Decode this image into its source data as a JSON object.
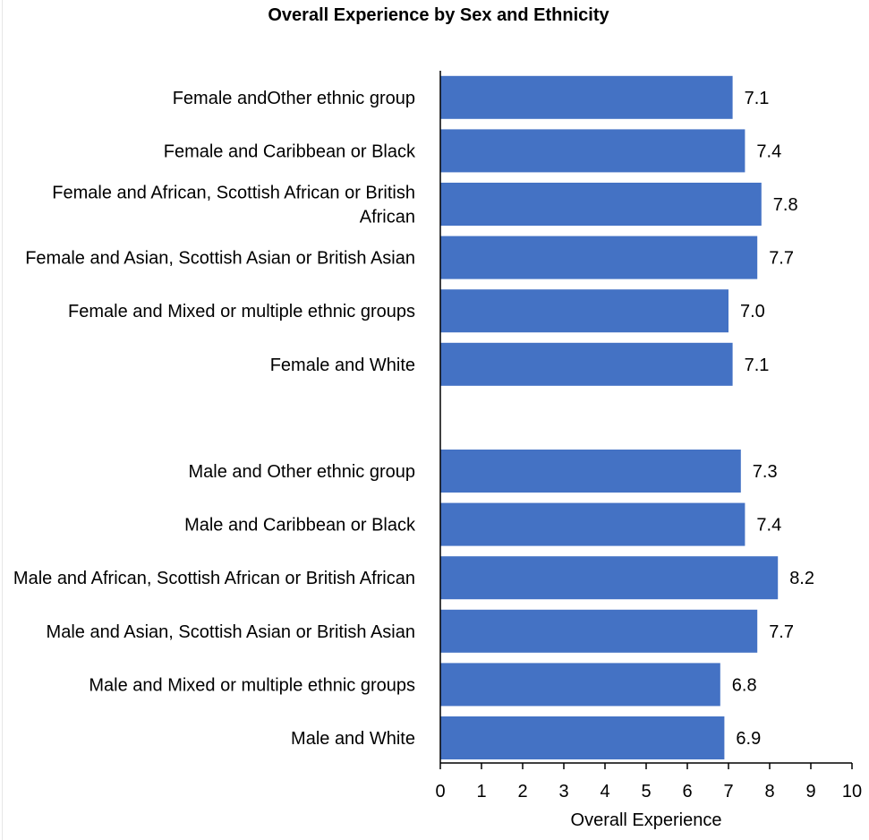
{
  "chart_data": {
    "type": "bar",
    "orientation": "horizontal",
    "title": "Overall Experience by Sex and Ethnicity",
    "xlabel": "Overall Experience",
    "ylabel": "",
    "xlim": [
      0,
      10
    ],
    "xticks": [
      "0",
      "1",
      "2",
      "3",
      "4",
      "5",
      "6",
      "7",
      "8",
      "9",
      "10"
    ],
    "grid": false,
    "legend": "none",
    "bar_color": "#4472C4",
    "categories": [
      "Female andOther ethnic group",
      "Female and Caribbean or Black",
      "Female and African, Scottish African or British African",
      "Female and Asian, Scottish Asian or British Asian",
      "Female and Mixed or multiple ethnic groups",
      "Female and White",
      "",
      "Male and Other ethnic group",
      "Male and Caribbean or Black",
      "Male and African, Scottish African or British African",
      "Male and Asian, Scottish Asian or British Asian",
      "Male and Mixed or multiple ethnic groups",
      "Male and White"
    ],
    "values": [
      7.1,
      7.4,
      7.8,
      7.7,
      7.0,
      7.1,
      null,
      7.3,
      7.4,
      8.2,
      7.7,
      6.8,
      6.9
    ],
    "data_labels": [
      "7.1",
      "7.4",
      "7.8",
      "7.7",
      "7.0",
      "7.1",
      "",
      "7.3",
      "7.4",
      "8.2",
      "7.7",
      "6.8",
      "6.9"
    ]
  }
}
